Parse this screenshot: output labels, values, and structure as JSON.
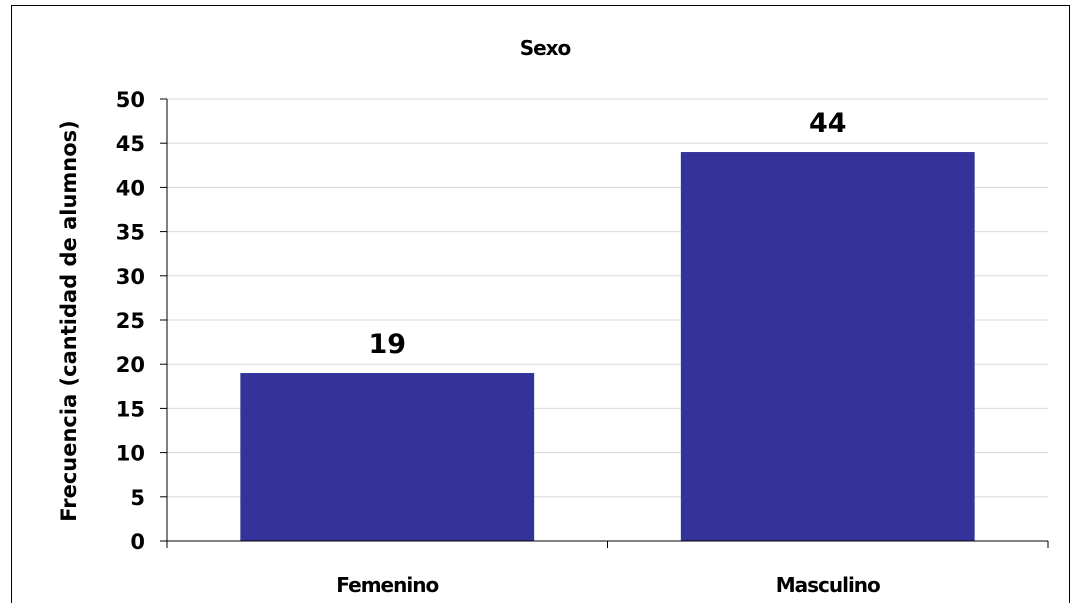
{
  "chart_data": {
    "type": "bar",
    "title": "Sexo",
    "xlabel": "",
    "ylabel": "Frecuencia (cantidad de alumnos)",
    "categories": [
      "Femenino",
      "Masculino"
    ],
    "values": [
      19,
      44
    ],
    "data_labels": [
      "19",
      "44"
    ],
    "ylim": [
      0,
      50
    ],
    "yticks": [
      0,
      5,
      10,
      15,
      20,
      25,
      30,
      35,
      40,
      45,
      50
    ],
    "grid": true,
    "legend": "none",
    "bar_color": "#333399",
    "grid_color": "#d9d9d9"
  }
}
